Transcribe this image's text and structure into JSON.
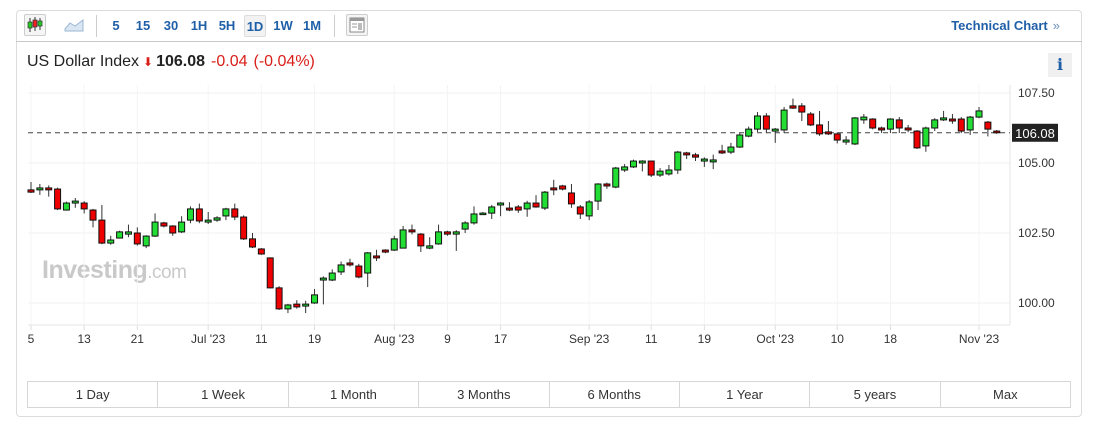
{
  "toolbar": {
    "chart_types": [
      {
        "icon": "candlestick-icon"
      },
      {
        "icon": "area-chart-icon"
      }
    ],
    "intervals": [
      "5",
      "15",
      "30",
      "1H",
      "5H",
      "1D",
      "1W",
      "1M"
    ],
    "active_interval": "1D",
    "layout_icon": "layout-icon",
    "technical_chart_label": "Technical Chart",
    "technical_chart_chevron": "»"
  },
  "header": {
    "name": "US Dollar Index",
    "direction_icon": "arrow-down-icon",
    "price": "106.08",
    "change": "-0.04",
    "change_pct": "(-0.04%)",
    "down_color": "#d91e18",
    "info_label": "i"
  },
  "watermark": {
    "brand": "Investing",
    "suffix": ".com"
  },
  "chart_data": {
    "type": "candlestick",
    "up_color": "#22dd33",
    "down_color": "#ee0000",
    "ylim": [
      99.4,
      107.7
    ],
    "y_ticks": [
      "100.00",
      "102.50",
      "105.00",
      "107.50"
    ],
    "y_tick_values": [
      100,
      102.5,
      105,
      107.5
    ],
    "last_price_label": "106.08",
    "last_price": 106.08,
    "grid": true,
    "x_ticks": [
      {
        "label": "5",
        "candle": 0
      },
      {
        "label": "13",
        "candle": 6
      },
      {
        "label": "21",
        "candle": 12
      },
      {
        "label": "Jul '23",
        "candle": 20
      },
      {
        "label": "11",
        "candle": 26
      },
      {
        "label": "19",
        "candle": 32
      },
      {
        "label": "Aug '23",
        "candle": 41
      },
      {
        "label": "9",
        "candle": 47
      },
      {
        "label": "17",
        "candle": 53
      },
      {
        "label": "Sep '23",
        "candle": 63
      },
      {
        "label": "11",
        "candle": 70
      },
      {
        "label": "19",
        "candle": 76
      },
      {
        "label": "Oct '23",
        "candle": 84
      },
      {
        "label": "10",
        "candle": 91
      },
      {
        "label": "18",
        "candle": 97
      },
      {
        "label": "Nov '23",
        "candle": 107
      }
    ],
    "ohlc": [
      [
        104.04,
        104.32,
        103.93,
        103.96
      ],
      [
        104.04,
        104.25,
        103.86,
        104.11
      ],
      [
        104.11,
        104.2,
        103.8,
        104.04
      ],
      [
        104.07,
        104.12,
        103.32,
        103.36
      ],
      [
        103.32,
        103.62,
        103.3,
        103.57
      ],
      [
        103.57,
        103.75,
        103.4,
        103.64
      ],
      [
        103.57,
        103.64,
        103.2,
        103.36
      ],
      [
        103.32,
        103.36,
        102.7,
        102.96
      ],
      [
        102.96,
        103.5,
        102.1,
        102.14
      ],
      [
        102.14,
        102.4,
        102.08,
        102.25
      ],
      [
        102.32,
        102.58,
        102.3,
        102.54
      ],
      [
        102.46,
        102.8,
        102.35,
        102.54
      ],
      [
        102.5,
        102.7,
        102.05,
        102.11
      ],
      [
        102.04,
        102.42,
        101.96,
        102.39
      ],
      [
        102.39,
        103.2,
        102.36,
        102.89
      ],
      [
        102.86,
        102.9,
        102.7,
        102.75
      ],
      [
        102.75,
        102.78,
        102.4,
        102.5
      ],
      [
        102.54,
        103.1,
        102.5,
        102.89
      ],
      [
        102.96,
        103.45,
        102.85,
        103.36
      ],
      [
        103.36,
        103.55,
        102.85,
        102.93
      ],
      [
        102.89,
        103.25,
        102.82,
        102.96
      ],
      [
        102.96,
        103.1,
        102.9,
        103.04
      ],
      [
        103.11,
        103.4,
        102.96,
        103.36
      ],
      [
        103.36,
        103.55,
        102.96,
        103.07
      ],
      [
        103.07,
        103.13,
        102.25,
        102.29
      ],
      [
        102.29,
        102.5,
        101.96,
        102.0
      ],
      [
        101.93,
        101.96,
        101.72,
        101.75
      ],
      [
        101.61,
        101.63,
        100.52,
        100.54
      ],
      [
        100.54,
        100.6,
        99.75,
        99.79
      ],
      [
        99.79,
        99.97,
        99.64,
        99.93
      ],
      [
        99.96,
        100.1,
        99.8,
        99.86
      ],
      [
        99.89,
        100.08,
        99.64,
        99.96
      ],
      [
        100.0,
        100.5,
        99.97,
        100.29
      ],
      [
        100.82,
        100.95,
        99.95,
        100.89
      ],
      [
        100.82,
        101.2,
        100.78,
        101.07
      ],
      [
        101.11,
        101.48,
        101.0,
        101.36
      ],
      [
        101.43,
        101.58,
        101.3,
        101.36
      ],
      [
        101.32,
        101.4,
        100.88,
        100.93
      ],
      [
        101.07,
        101.82,
        100.57,
        101.79
      ],
      [
        101.68,
        101.9,
        101.5,
        101.61
      ],
      [
        101.89,
        101.92,
        101.78,
        101.82
      ],
      [
        101.89,
        102.4,
        101.86,
        102.29
      ],
      [
        101.96,
        102.75,
        101.96,
        102.61
      ],
      [
        102.61,
        102.8,
        102.45,
        102.54
      ],
      [
        102.46,
        102.5,
        101.82,
        102.04
      ],
      [
        101.96,
        102.35,
        101.92,
        102.04
      ],
      [
        102.11,
        102.8,
        102.08,
        102.54
      ],
      [
        102.54,
        102.58,
        102.4,
        102.46
      ],
      [
        102.46,
        102.6,
        101.86,
        102.54
      ],
      [
        102.64,
        102.92,
        102.5,
        102.86
      ],
      [
        102.86,
        103.45,
        102.8,
        103.18
      ],
      [
        103.21,
        103.25,
        103.15,
        103.21
      ],
      [
        103.21,
        103.5,
        103.0,
        103.43
      ],
      [
        103.5,
        103.6,
        103.1,
        103.57
      ],
      [
        103.39,
        103.6,
        103.28,
        103.32
      ],
      [
        103.43,
        103.5,
        103.22,
        103.32
      ],
      [
        103.36,
        103.65,
        103.08,
        103.57
      ],
      [
        103.57,
        103.85,
        103.4,
        103.43
      ],
      [
        103.39,
        104.0,
        103.32,
        103.96
      ],
      [
        104.11,
        104.4,
        103.85,
        104.04
      ],
      [
        104.18,
        104.22,
        104.02,
        104.07
      ],
      [
        103.93,
        104.25,
        103.4,
        103.54
      ],
      [
        103.43,
        103.5,
        103.0,
        103.18
      ],
      [
        103.11,
        103.68,
        102.96,
        103.61
      ],
      [
        103.64,
        104.28,
        103.32,
        104.25
      ],
      [
        104.25,
        104.3,
        104.08,
        104.18
      ],
      [
        104.14,
        104.86,
        104.1,
        104.82
      ],
      [
        104.75,
        104.96,
        104.68,
        104.86
      ],
      [
        104.86,
        105.12,
        104.82,
        105.07
      ],
      [
        105.0,
        105.1,
        104.7,
        105.07
      ],
      [
        105.07,
        105.07,
        104.5,
        104.57
      ],
      [
        104.57,
        104.82,
        104.5,
        104.71
      ],
      [
        104.61,
        104.93,
        104.55,
        104.75
      ],
      [
        104.75,
        105.43,
        104.61,
        105.39
      ],
      [
        105.36,
        105.4,
        105.14,
        105.29
      ],
      [
        105.29,
        105.36,
        105.07,
        105.21
      ],
      [
        105.07,
        105.2,
        104.86,
        105.14
      ],
      [
        105.04,
        105.3,
        104.78,
        105.11
      ],
      [
        105.43,
        105.65,
        105.32,
        105.36
      ],
      [
        105.39,
        105.72,
        105.32,
        105.57
      ],
      [
        105.57,
        106.07,
        105.54,
        106.0
      ],
      [
        105.96,
        106.3,
        105.92,
        106.21
      ],
      [
        106.21,
        106.82,
        106.11,
        106.68
      ],
      [
        106.68,
        106.78,
        106.07,
        106.21
      ],
      [
        106.14,
        106.25,
        105.72,
        106.21
      ],
      [
        106.18,
        107.0,
        106.07,
        106.89
      ],
      [
        107.04,
        107.3,
        106.93,
        106.96
      ],
      [
        107.04,
        107.14,
        106.5,
        106.82
      ],
      [
        106.75,
        106.82,
        106.32,
        106.36
      ],
      [
        106.36,
        106.86,
        105.97,
        106.04
      ],
      [
        106.11,
        106.5,
        106.0,
        106.04
      ],
      [
        106.04,
        106.1,
        105.7,
        105.82
      ],
      [
        105.75,
        105.96,
        105.65,
        105.82
      ],
      [
        105.68,
        106.64,
        105.64,
        106.61
      ],
      [
        106.54,
        106.75,
        106.4,
        106.64
      ],
      [
        106.57,
        106.6,
        106.2,
        106.25
      ],
      [
        106.25,
        106.3,
        106.07,
        106.18
      ],
      [
        106.21,
        106.6,
        106.07,
        106.57
      ],
      [
        106.54,
        106.64,
        106.07,
        106.25
      ],
      [
        106.25,
        106.36,
        106.1,
        106.18
      ],
      [
        106.14,
        106.18,
        105.5,
        105.54
      ],
      [
        105.61,
        106.3,
        105.4,
        106.25
      ],
      [
        106.25,
        106.6,
        106.14,
        106.54
      ],
      [
        106.54,
        106.86,
        106.5,
        106.61
      ],
      [
        106.57,
        106.75,
        106.4,
        106.5
      ],
      [
        106.57,
        106.64,
        106.07,
        106.14
      ],
      [
        106.18,
        106.68,
        106.0,
        106.64
      ],
      [
        106.64,
        107.0,
        106.6,
        106.86
      ],
      [
        106.46,
        106.5,
        105.95,
        106.21
      ],
      [
        106.14,
        106.18,
        106.04,
        106.08
      ]
    ]
  },
  "ranges": [
    "1 Day",
    "1 Week",
    "1 Month",
    "3 Months",
    "6 Months",
    "1 Year",
    "5 years",
    "Max"
  ]
}
